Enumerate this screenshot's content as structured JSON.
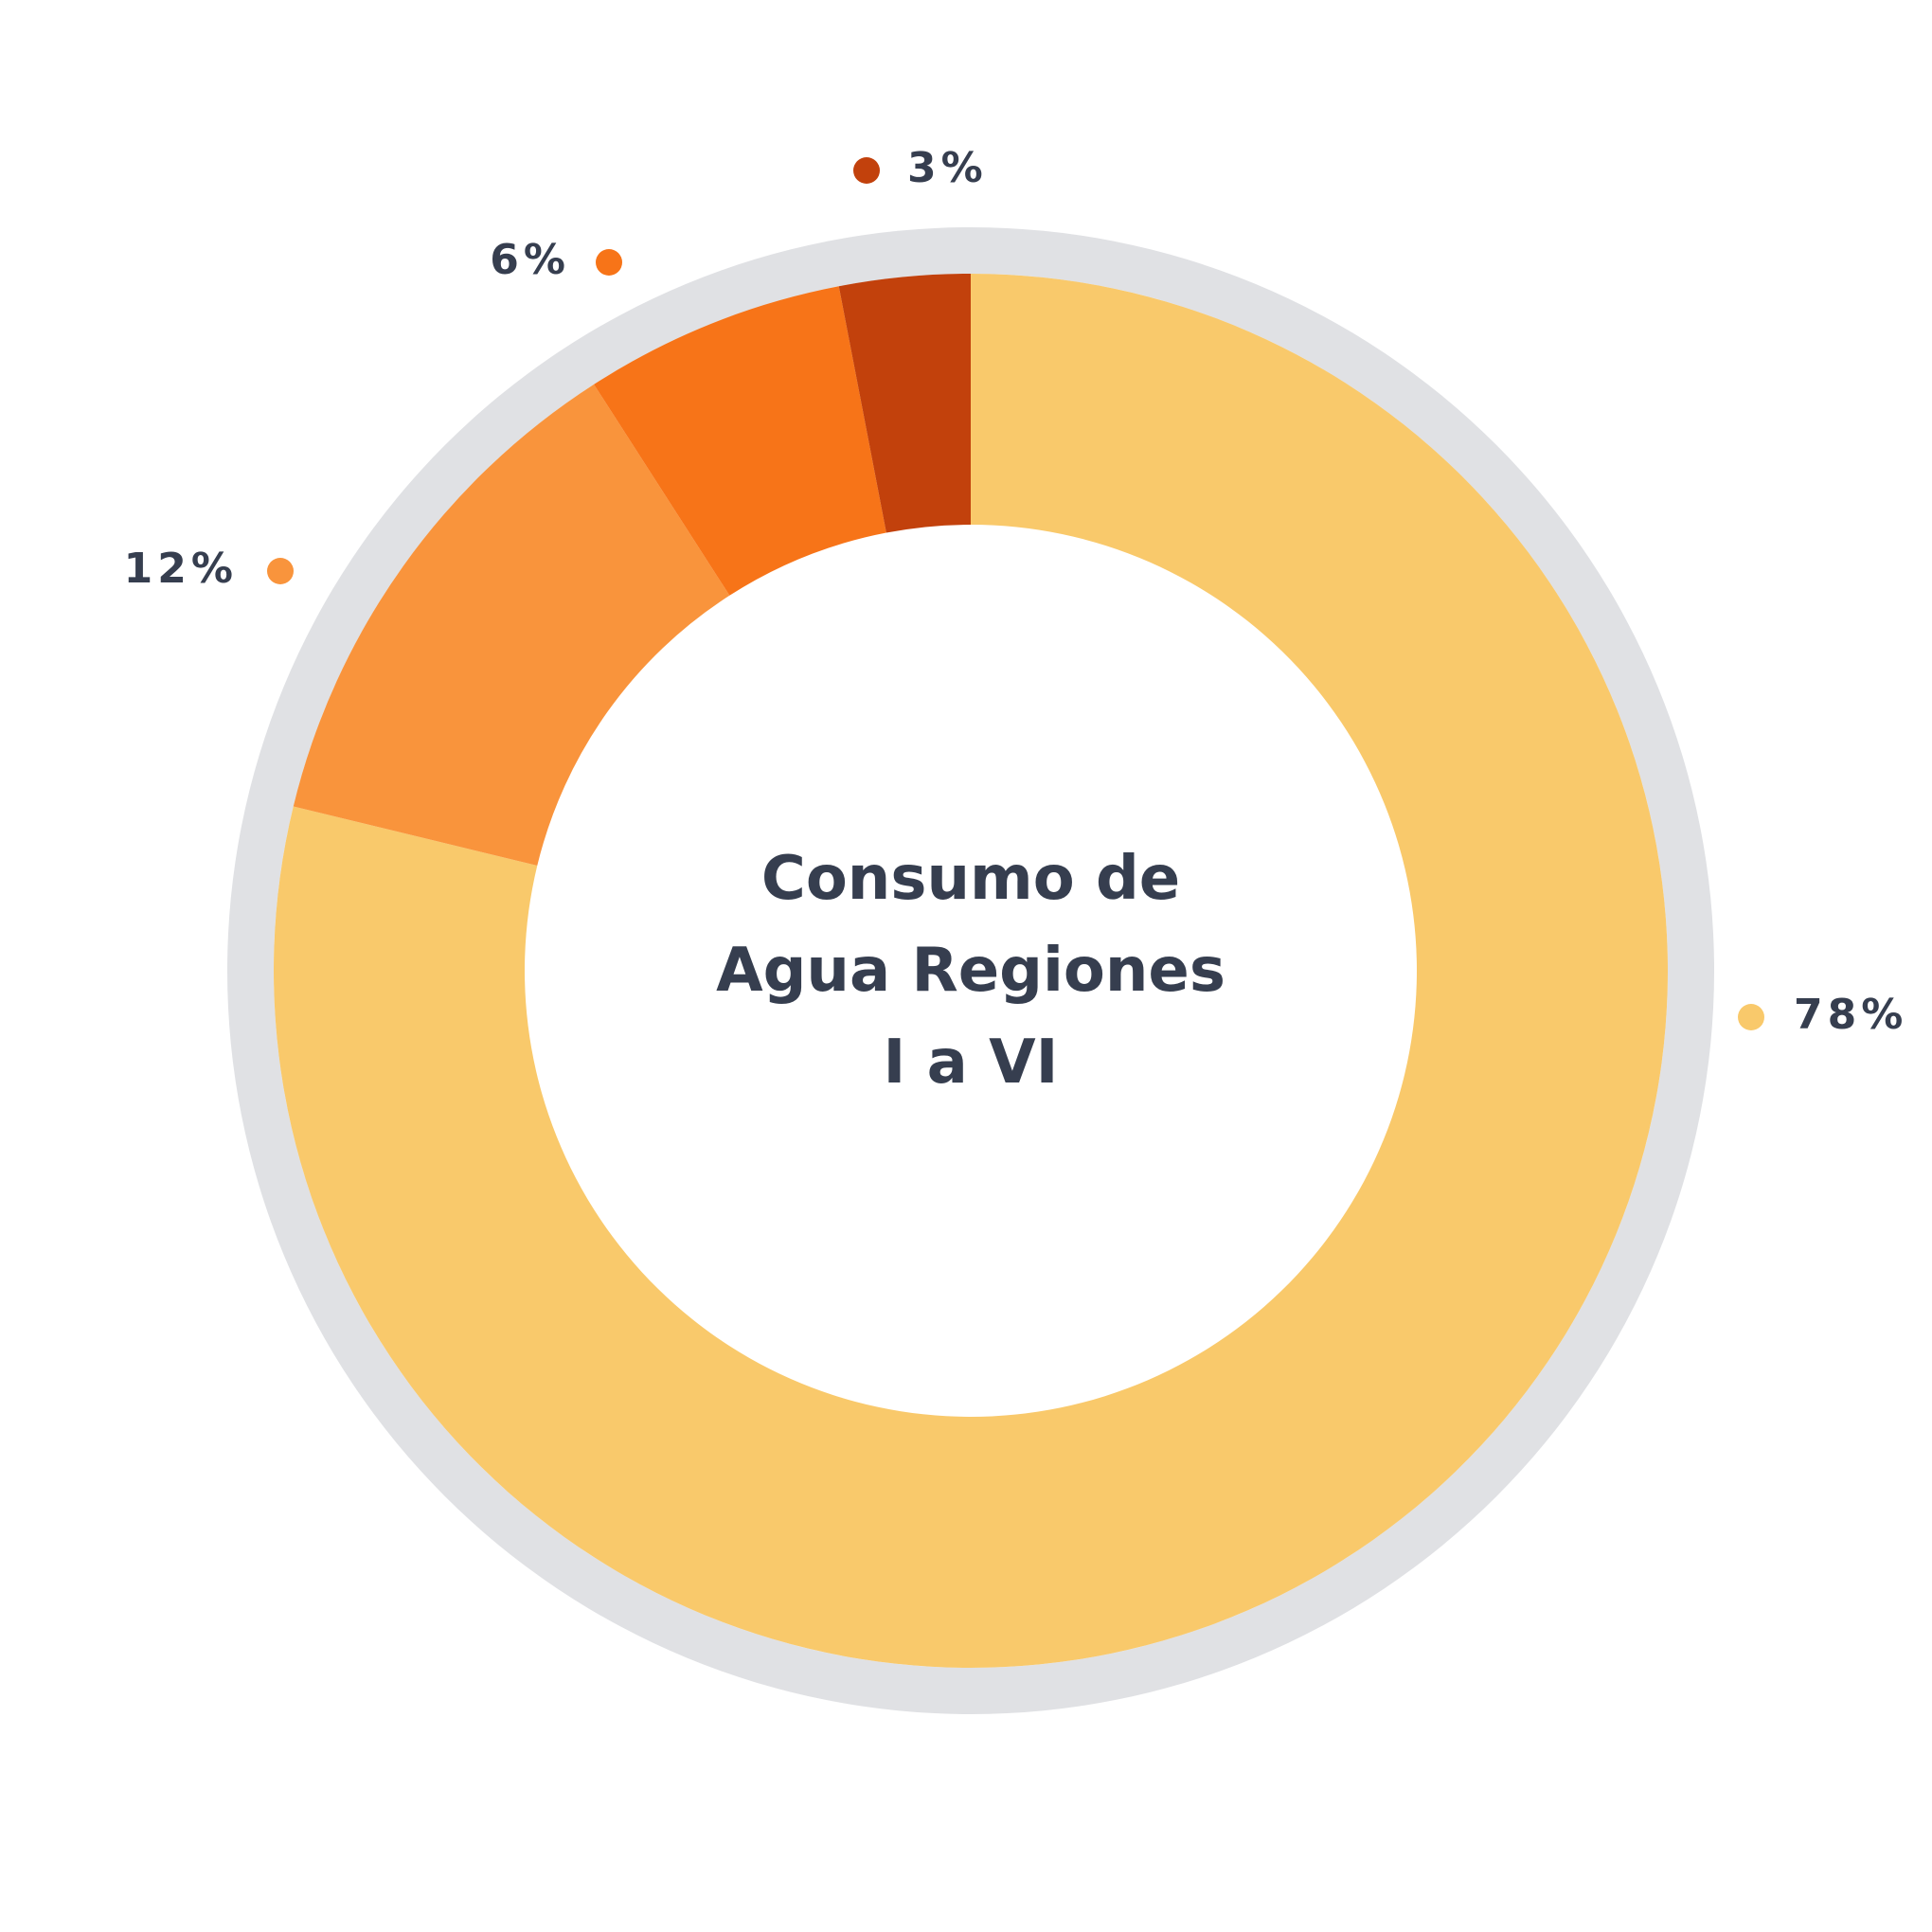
{
  "chart_data": {
    "type": "donut",
    "title": "Consumo de Agua Regiones I a VI",
    "categories": [
      null,
      null,
      null,
      null
    ],
    "values": [
      78,
      12,
      6,
      3
    ],
    "value_labels": [
      "78%",
      "12%",
      "6%",
      "3%"
    ],
    "colors": [
      "#f9c96b",
      "#f9943c",
      "#f77418",
      "#c2410c"
    ]
  }
}
